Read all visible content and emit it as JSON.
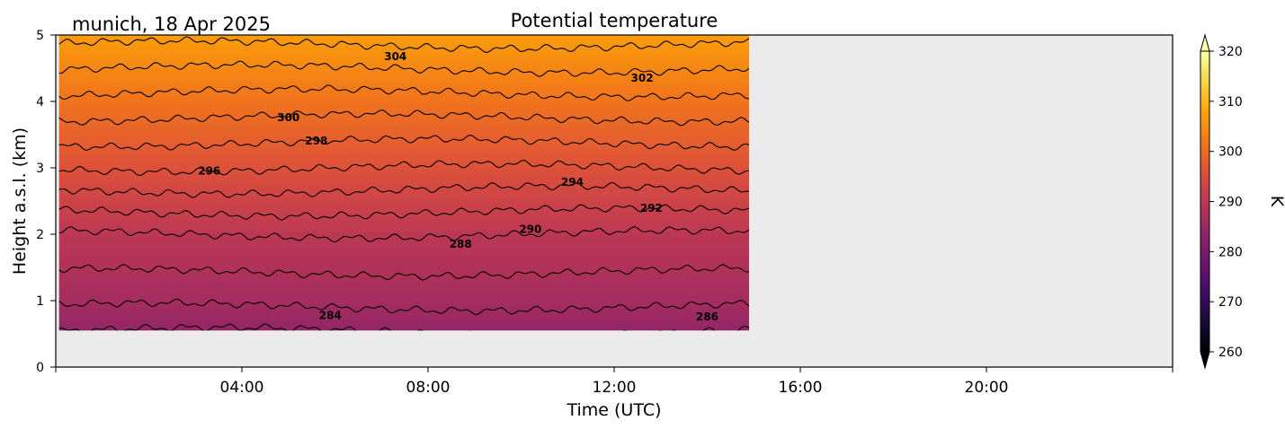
{
  "chart_data": {
    "type": "heatmap",
    "title": "Potential temperature",
    "subtitle": "munich, 18 Apr 2025",
    "xlabel": "Time (UTC)",
    "ylabel": "Height a.s.l. (km)",
    "x_unit": "hours UTC",
    "xlim": [
      0,
      24
    ],
    "ylim": [
      0,
      5
    ],
    "x_ticks": [
      {
        "value": 4,
        "label": "04:00"
      },
      {
        "value": 8,
        "label": "08:00"
      },
      {
        "value": 12,
        "label": "12:00"
      },
      {
        "value": 16,
        "label": "16:00"
      },
      {
        "value": 20,
        "label": "20:00"
      }
    ],
    "y_ticks": [
      {
        "value": 0,
        "label": "0"
      },
      {
        "value": 1,
        "label": "1"
      },
      {
        "value": 2,
        "label": "2"
      },
      {
        "value": 3,
        "label": "3"
      },
      {
        "value": 4,
        "label": "4"
      },
      {
        "value": 5,
        "label": "5"
      }
    ],
    "data_extent": {
      "x": [
        0.07,
        14.9
      ],
      "y": [
        0.55,
        5.0
      ]
    },
    "no_data_color": "#ebebeb",
    "colormap": "inferno",
    "colorbar": {
      "label": "K",
      "min": 260,
      "max": 320,
      "ticks": [
        260,
        270,
        280,
        290,
        300,
        310,
        320
      ],
      "extend": "both"
    },
    "contour_levels": [
      284,
      286,
      288,
      290,
      292,
      294,
      296,
      298,
      300,
      302,
      304,
      306
    ],
    "contour_profile": [
      {
        "height_km": 0.5,
        "theta_K": 283.8
      },
      {
        "height_km": 1.0,
        "theta_K": 286.5
      },
      {
        "height_km": 2.0,
        "theta_K": 290.0
      },
      {
        "height_km": 3.0,
        "theta_K": 296.0
      },
      {
        "height_km": 4.0,
        "theta_K": 301.3
      },
      {
        "height_km": 5.0,
        "theta_K": 306.8
      }
    ],
    "contour_labels": [
      {
        "value": "284",
        "x": 5.9,
        "y": 0.72
      },
      {
        "value": "286",
        "x": 14.0,
        "y": 0.7
      },
      {
        "value": "288",
        "x": 8.7,
        "y": 1.8
      },
      {
        "value": "290",
        "x": 10.2,
        "y": 2.02
      },
      {
        "value": "292",
        "x": 12.8,
        "y": 2.34
      },
      {
        "value": "294",
        "x": 11.1,
        "y": 2.73
      },
      {
        "value": "296",
        "x": 3.3,
        "y": 2.9
      },
      {
        "value": "298",
        "x": 5.6,
        "y": 3.35
      },
      {
        "value": "300",
        "x": 5.0,
        "y": 3.7
      },
      {
        "value": "302",
        "x": 12.6,
        "y": 4.3
      },
      {
        "value": "304",
        "x": 7.3,
        "y": 4.62
      }
    ]
  },
  "colors": {
    "axes": "#000000",
    "contour": "#000000",
    "background": "#ffffff"
  }
}
